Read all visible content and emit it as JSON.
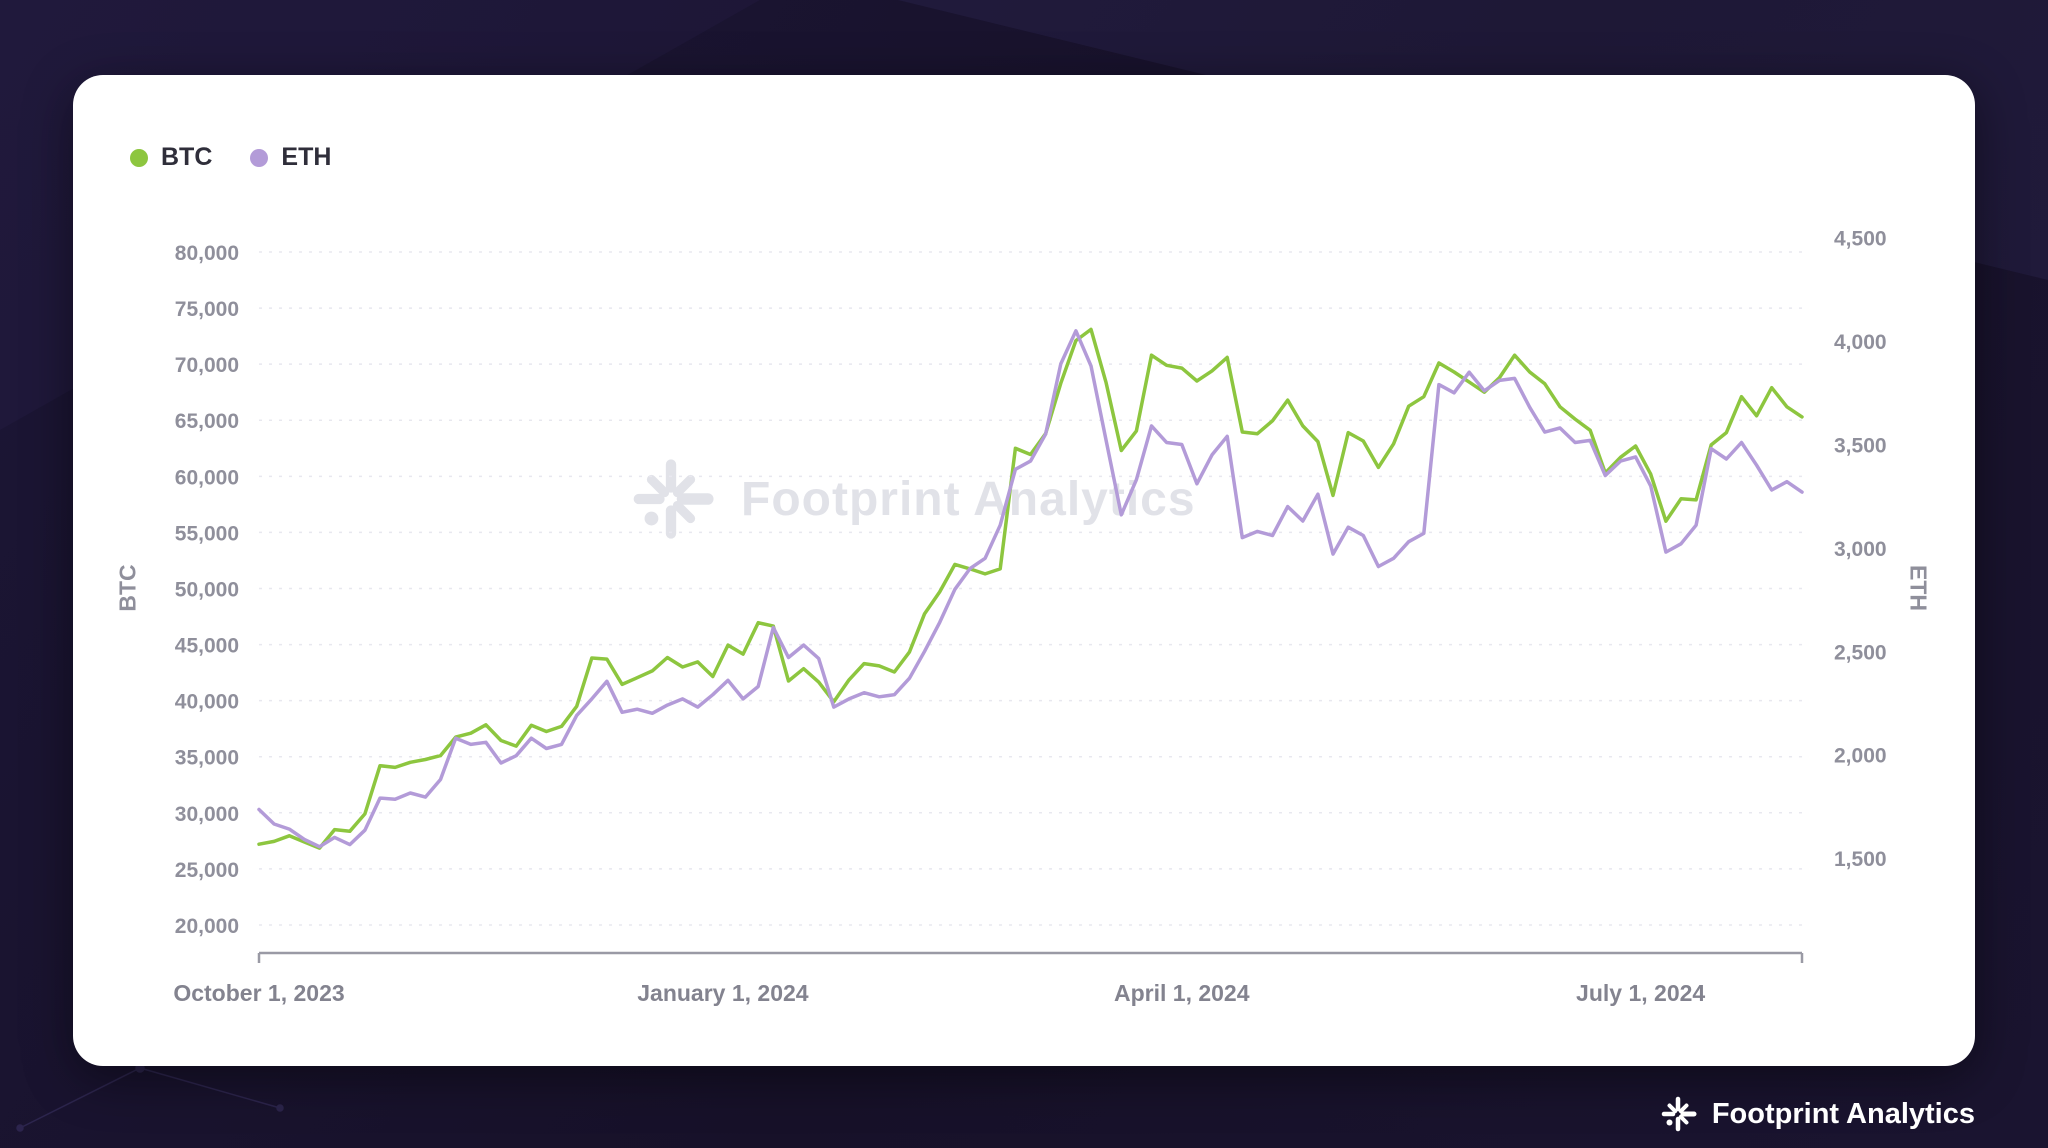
{
  "page": {
    "background_color": "#171129"
  },
  "legend": {
    "items": [
      {
        "label": "BTC",
        "color": "#8DC63F"
      },
      {
        "label": "ETH",
        "color": "#B39BD8"
      }
    ]
  },
  "watermark": {
    "text": "Footprint Analytics"
  },
  "footer": {
    "brand": "Footprint Analytics"
  },
  "chart_data": {
    "type": "line",
    "title": "",
    "grid": "horizontal-dashed",
    "legend_position": "top-left",
    "x_axis": {
      "day_span": 306,
      "ticks": [
        {
          "label": "October 1, 2023",
          "day": 0
        },
        {
          "label": "January 1, 2024",
          "day": 92
        },
        {
          "label": "April 1, 2024",
          "day": 183
        },
        {
          "label": "July 1, 2024",
          "day": 274
        }
      ]
    },
    "left_axis": {
      "label": "BTC",
      "ylim": [
        17500,
        83300
      ],
      "ticks": [
        {
          "value": 20000,
          "label": "20,000"
        },
        {
          "value": 25000,
          "label": "25,000"
        },
        {
          "value": 30000,
          "label": "30,000"
        },
        {
          "value": 35000,
          "label": "35,000"
        },
        {
          "value": 40000,
          "label": "40,000"
        },
        {
          "value": 45000,
          "label": "45,000"
        },
        {
          "value": 50000,
          "label": "50,000"
        },
        {
          "value": 55000,
          "label": "55,000"
        },
        {
          "value": 60000,
          "label": "60,000"
        },
        {
          "value": 65000,
          "label": "65,000"
        },
        {
          "value": 70000,
          "label": "70,000"
        },
        {
          "value": 75000,
          "label": "75,000"
        },
        {
          "value": 80000,
          "label": "80,000"
        }
      ]
    },
    "right_axis": {
      "label": "ETH",
      "ylim": [
        1041,
        4610
      ],
      "ticks": [
        {
          "value": 1500,
          "label": "1,500"
        },
        {
          "value": 2000,
          "label": "2,000"
        },
        {
          "value": 2500,
          "label": "2,500"
        },
        {
          "value": 3000,
          "label": "3,000"
        },
        {
          "value": 3500,
          "label": "3,500"
        },
        {
          "value": 4000,
          "label": "4,000"
        },
        {
          "value": 4500,
          "label": "4,500"
        }
      ]
    },
    "series": [
      {
        "name": "BTC",
        "axis": "left",
        "color": "#8DC63F",
        "start_date": "2023-10-01",
        "day_step": 3,
        "values": [
          27200,
          27450,
          27950,
          27400,
          26850,
          28500,
          28350,
          29900,
          34200,
          34050,
          34500,
          34750,
          35100,
          36750,
          37100,
          37850,
          36450,
          35950,
          37800,
          37250,
          37700,
          39500,
          43800,
          43700,
          41450,
          42050,
          42650,
          43850,
          43000,
          43450,
          42150,
          44950,
          44150,
          46950,
          46650,
          41750,
          42850,
          41650,
          39900,
          41850,
          43300,
          43100,
          42550,
          44350,
          47750,
          49700,
          52150,
          51750,
          51300,
          51750,
          62500,
          61950,
          63800,
          68300,
          72100,
          73100,
          68350,
          62300,
          64050,
          70800,
          69900,
          69650,
          68500,
          69400,
          70600,
          63950,
          63800,
          64950,
          66800,
          64500,
          63100,
          58300,
          63900,
          63150,
          60800,
          62900,
          66250,
          67100,
          70100,
          69300,
          68400,
          67500,
          68800,
          70800,
          69300,
          68250,
          66200,
          65100,
          64100,
          60300,
          61700,
          62700,
          60200,
          56000,
          58000,
          57900,
          62800,
          63900,
          67100,
          65400,
          67900,
          66200,
          65300
        ]
      },
      {
        "name": "ETH",
        "axis": "right",
        "color": "#B39BD8",
        "start_date": "2023-10-01",
        "day_step": 3,
        "values": [
          1735,
          1665,
          1640,
          1590,
          1555,
          1600,
          1565,
          1635,
          1790,
          1785,
          1815,
          1795,
          1880,
          2080,
          2050,
          2060,
          1960,
          1995,
          2080,
          2030,
          2050,
          2190,
          2270,
          2355,
          2205,
          2220,
          2200,
          2240,
          2270,
          2230,
          2290,
          2360,
          2270,
          2330,
          2615,
          2470,
          2530,
          2465,
          2230,
          2270,
          2300,
          2280,
          2290,
          2370,
          2500,
          2640,
          2800,
          2900,
          2950,
          3110,
          3380,
          3420,
          3550,
          3890,
          4050,
          3880,
          3520,
          3160,
          3330,
          3590,
          3510,
          3500,
          3310,
          3450,
          3540,
          3050,
          3080,
          3060,
          3200,
          3130,
          3260,
          2970,
          3100,
          3060,
          2910,
          2950,
          3030,
          3070,
          3790,
          3750,
          3850,
          3760,
          3810,
          3820,
          3680,
          3560,
          3580,
          3510,
          3520,
          3350,
          3420,
          3440,
          3300,
          2980,
          3020,
          3110,
          3480,
          3430,
          3510,
          3400,
          3280,
          3320,
          3270
        ]
      }
    ]
  }
}
